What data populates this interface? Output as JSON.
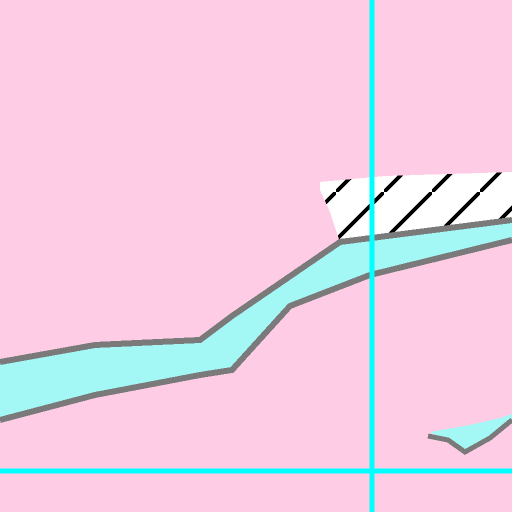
{
  "map": {
    "colors": {
      "land": "#ffcce6",
      "water": "#a3f7f5",
      "shoreline": "#7a7a7a",
      "grid_line": "#00ffff",
      "hatch_fill": "#ffffff",
      "hatch_stroke": "#000000"
    },
    "layers": {
      "grid": true,
      "river": true,
      "pond": true,
      "hatched_area": true
    }
  }
}
